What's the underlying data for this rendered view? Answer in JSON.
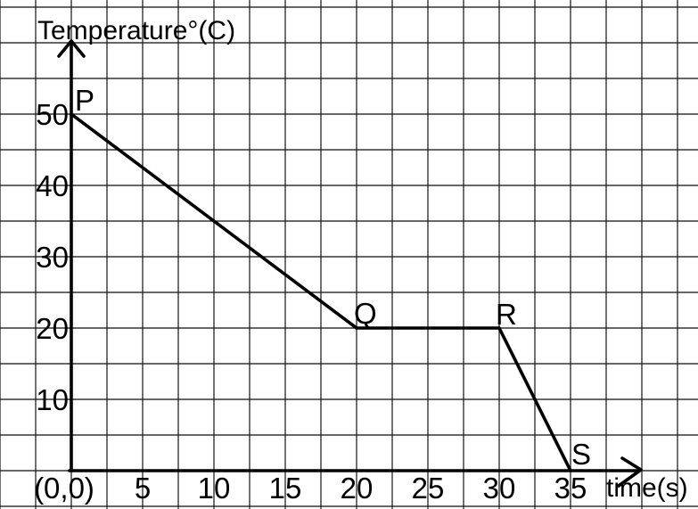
{
  "chart_data": {
    "type": "line",
    "title": "Temperature°(C)",
    "xlabel": "time(s)",
    "origin_label": "(0,0)",
    "grid": true,
    "xlim": [
      0,
      40
    ],
    "ylim": [
      0,
      60
    ],
    "x_ticks": [
      {
        "value": 5,
        "label": "5"
      },
      {
        "value": 10,
        "label": "10"
      },
      {
        "value": 15,
        "label": "15"
      },
      {
        "value": 20,
        "label": "20"
      },
      {
        "value": 25,
        "label": "25"
      },
      {
        "value": 30,
        "label": "30"
      },
      {
        "value": 35,
        "label": "35"
      }
    ],
    "y_ticks": [
      {
        "value": 10,
        "label": "10"
      },
      {
        "value": 20,
        "label": "20"
      },
      {
        "value": 30,
        "label": "30"
      },
      {
        "value": 40,
        "label": "40"
      },
      {
        "value": 50,
        "label": "50"
      }
    ],
    "points": [
      {
        "label": "P",
        "x": 0,
        "y": 50
      },
      {
        "label": "Q",
        "x": 20,
        "y": 20
      },
      {
        "label": "R",
        "x": 30,
        "y": 20
      },
      {
        "label": "S",
        "x": 35,
        "y": 0
      }
    ]
  }
}
